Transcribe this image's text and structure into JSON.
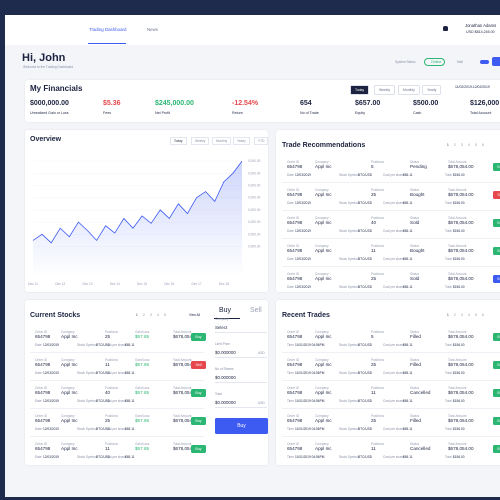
{
  "header": {
    "tabs": [
      "Trading Dashboard",
      "News"
    ],
    "user": "Jonathan Adams",
    "balance": "USD $814,245.00"
  },
  "greeting": {
    "title": "Hi, John",
    "subtitle": "Welcome to the Trading Dashboard",
    "status_label": "System Status",
    "status": "Online",
    "mail": "Mail"
  },
  "financials": {
    "title": "My Financials",
    "tabs": [
      "Today",
      "Weekly",
      "Monthly",
      "Yearly"
    ],
    "date": "11/02/2019-12/02/2019",
    "stats": [
      {
        "value": "$000,000.00",
        "label": "Unrealized Gain or Loss",
        "color": "#1c2340"
      },
      {
        "value": "$5.36",
        "label": "Fees",
        "color": "#e5484d"
      },
      {
        "value": "$245,000.00",
        "label": "Net Profit",
        "color": "#2bb673"
      },
      {
        "value": "-12.54%",
        "label": "Return",
        "color": "#e5484d"
      },
      {
        "value": "654",
        "label": "No of Trade",
        "color": "#1c2340"
      },
      {
        "value": "$657.00",
        "label": "Equity",
        "color": "#1c2340"
      },
      {
        "value": "$500.00",
        "label": "Cash",
        "color": "#1c2340"
      },
      {
        "value": "$126,000",
        "label": "Total Account",
        "color": "#1c2340"
      }
    ]
  },
  "chart_data": {
    "type": "area",
    "title": "Overview",
    "tabs": [
      "Today",
      "Weekly",
      "Monthly",
      "Yearly",
      "YTD"
    ],
    "color": "#3d5af1",
    "categories": [
      "Dec 11",
      null,
      null,
      "Dec 12",
      null,
      null,
      "Dec 13",
      null,
      null,
      "Dec 14",
      null,
      null,
      "Dec 15",
      null,
      null,
      "Dec 16",
      null,
      null,
      "Dec 17",
      null,
      null,
      "Dec 18",
      null,
      null
    ],
    "values": [
      30,
      35,
      28,
      40,
      33,
      45,
      38,
      30,
      42,
      36,
      48,
      40,
      50,
      44,
      55,
      48,
      60,
      52,
      65,
      70,
      62,
      78,
      85,
      95
    ],
    "ylim": [
      0,
      100
    ],
    "yticks": [
      {
        "value": 25,
        "label": "0,000.00"
      },
      {
        "value": 35,
        "label": "0,000.00"
      },
      {
        "value": 45,
        "label": "0,000.00"
      },
      {
        "value": 55,
        "label": "0,000.00"
      },
      {
        "value": 65,
        "label": "0,000.00"
      },
      {
        "value": 75,
        "label": "0,000.00"
      },
      {
        "value": 85,
        "label": "0,000.00"
      },
      {
        "value": 95,
        "label": "0,000.00"
      }
    ]
  },
  "recommendations": {
    "title": "Trade Recommendations",
    "pages": [
      "1",
      "2",
      "3",
      "4",
      "5",
      "6"
    ],
    "columns": [
      "Order ID",
      "Company",
      "Positions",
      "Status",
      "Total Amount"
    ],
    "sub_columns": [
      "Date",
      "Stock Symbol",
      "Cost per share",
      "Total"
    ],
    "rows": [
      {
        "cells": [
          "654798",
          "Appl Inc",
          "5",
          "Pending",
          "$678,054.00"
        ],
        "sub": [
          "12/03/2019",
          "BTC/USD",
          "$65.11",
          "$156.00"
        ],
        "action": "Buy",
        "action_color": "#2bb673"
      },
      {
        "cells": [
          "654798",
          "Appl Inc",
          "25",
          "Bought",
          "$678,054.00"
        ],
        "sub": [
          "12/03/2019",
          "BTC/USD",
          "$65.11",
          "$156.00"
        ],
        "action": "Sell",
        "action_color": "#e5484d"
      },
      {
        "cells": [
          "654798",
          "Appl Inc",
          "40",
          "Sold",
          "$678,054.00"
        ],
        "sub": [
          "12/03/2019",
          "BTC/USD",
          "$65.11",
          "$156.00"
        ],
        "action": "Buy",
        "action_color": "#2bb673"
      },
      {
        "cells": [
          "654798",
          "Appl Inc",
          "11",
          "Bought",
          "$678,054.00"
        ],
        "sub": [
          "12/03/2019",
          "BTC/USD",
          "$65.11",
          "$156.00"
        ],
        "action": "Buy",
        "action_color": "#2bb673"
      },
      {
        "cells": [
          "654798",
          "Appl Inc",
          "25",
          "Sold",
          "$678,054.00"
        ],
        "sub": [
          "12/03/2019",
          "BTC/USD",
          "$65.11",
          "$156.00"
        ],
        "action": "Buy",
        "action_color": "#3d5af1"
      }
    ]
  },
  "current_stocks": {
    "title": "Current Stocks",
    "pages": [
      "1",
      "2",
      "3",
      "4",
      "5"
    ],
    "view_all": "View All",
    "columns": [
      "Order ID",
      "Company",
      "Positions",
      "Gain/Loss",
      "Total Amount"
    ],
    "sub_columns": [
      "Date",
      "Stock Symbol",
      "Cost per share"
    ],
    "rows": [
      {
        "cells": [
          "654798",
          "Appl Inc",
          "25",
          "$57.65",
          "$678,054.00"
        ],
        "sub": [
          "12/03/2019",
          "BTC/USD",
          "$65.11"
        ],
        "action": "Buy",
        "action_color": "#2bb673"
      },
      {
        "cells": [
          "654798",
          "Appl Inc",
          "11",
          "$57.65",
          "$678,054.00"
        ],
        "sub": [
          "12/03/2019",
          "BTC/USD",
          "$65.11"
        ],
        "action": "Sell",
        "action_color": "#e5484d"
      },
      {
        "cells": [
          "654798",
          "Appl Inc",
          "40",
          "$57.65",
          "$678,054.00"
        ],
        "sub": [
          "12/03/2019",
          "BTC/USD",
          "$65.11"
        ],
        "action": "Buy",
        "action_color": "#2bb673"
      },
      {
        "cells": [
          "654798",
          "Appl Inc",
          "25",
          "$57.65",
          "$678,054.00"
        ],
        "sub": [
          "12/03/2019",
          "BTC/USD",
          "$65.11"
        ],
        "action": "Buy",
        "action_color": "#2bb673"
      },
      {
        "cells": [
          "654798",
          "Appl Inc",
          "11",
          "$57.65",
          "$678,054.00"
        ],
        "sub": [
          "12/03/2019",
          "BTC/USD",
          "$65.11"
        ],
        "action": "Buy",
        "action_color": "#2bb673"
      }
    ]
  },
  "order_form": {
    "tabs": [
      "Buy",
      "Sell"
    ],
    "company_label": "Company",
    "company_placeholder": "Select",
    "limit_label": "Limit Price",
    "limit_value": "$0.000000",
    "shares_label": "No of Shares",
    "shares_value": "$0.000000",
    "total_label": "Total",
    "total_value": "$0.000000",
    "unit": "USD",
    "button": "Buy"
  },
  "recent_trades": {
    "title": "Recent Trades",
    "pages": [
      "1",
      "2",
      "3",
      "4",
      "5",
      "6"
    ],
    "columns": [
      "Order ID",
      "Company",
      "Positions",
      "Status",
      "Total Amount"
    ],
    "sub_columns": [
      "Time",
      "Stock Symbol",
      "Cost per share",
      "Total"
    ],
    "rows": [
      {
        "cells": [
          "654798",
          "Appl Inc",
          "5",
          "Filled",
          "$678,054.00"
        ],
        "sub": [
          "11/01/2019 04:56PM",
          "BTC/USD",
          "$65.11",
          "$156.00"
        ],
        "action": "Buy",
        "action_color": "#2bb673"
      },
      {
        "cells": [
          "654798",
          "Appl Inc",
          "25",
          "Filled",
          "$678,054.00"
        ],
        "sub": [
          "11/01/2019 04:56PM",
          "BTC/USD",
          "$65.11",
          "$156.00"
        ],
        "action": "Buy",
        "action_color": "#2bb673"
      },
      {
        "cells": [
          "654798",
          "Appl Inc",
          "11",
          "Cancelled",
          "$678,054.00"
        ],
        "sub": [
          "11/01/2019 04:56PM",
          "BTC/USD",
          "$65.11",
          "$156.00"
        ],
        "action": "Buy",
        "action_color": "#2bb673"
      },
      {
        "cells": [
          "654798",
          "Appl Inc",
          "25",
          "Filled",
          "$678,054.00"
        ],
        "sub": [
          "11/01/2019 04:56PM",
          "BTC/USD",
          "$65.11",
          "$156.00"
        ],
        "action": "Buy",
        "action_color": "#2bb673"
      },
      {
        "cells": [
          "654798",
          "Appl Inc",
          "11",
          "Cancelled",
          "$678,054.00"
        ],
        "sub": [
          "11/01/2019 04:56PM",
          "BTC/USD",
          "$65.11",
          "$156.00"
        ],
        "action": "Buy",
        "action_color": "#2bb673"
      }
    ]
  }
}
